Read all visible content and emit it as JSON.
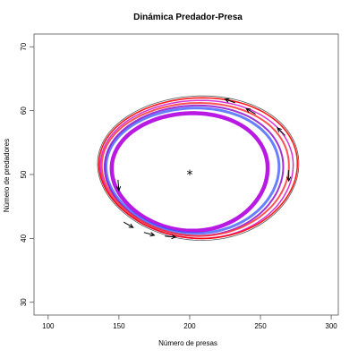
{
  "chart_data": {
    "type": "line",
    "title": "Dinámica Predador-Presa",
    "xlabel": "Número de presas",
    "ylabel": "Número de predadores",
    "xlim": [
      90,
      305
    ],
    "ylim": [
      28,
      72
    ],
    "xticks": [
      100,
      150,
      200,
      250,
      300
    ],
    "yticks": [
      30,
      40,
      50,
      60,
      70
    ],
    "grid": false,
    "equilibrium": {
      "x": 200,
      "y": 50,
      "marker": "*"
    },
    "series": [
      {
        "color": "#b000e0",
        "cx": 200,
        "cy": 50.4,
        "rx": 55,
        "ry": 9.2,
        "stroke": 4.5,
        "opacity": 0.9
      },
      {
        "color": "#3355ff",
        "cx": 202,
        "cy": 50.6,
        "rx": 61,
        "ry": 9.8,
        "stroke": 3,
        "opacity": 0.75
      },
      {
        "color": "#8800cc",
        "cx": 203,
        "cy": 50.6,
        "rx": 63,
        "ry": 10.2,
        "stroke": 2,
        "opacity": 0.8
      },
      {
        "color": "#ff3333",
        "cx": 204,
        "cy": 50.8,
        "rx": 66,
        "ry": 10.4,
        "stroke": 2,
        "opacity": 0.85
      },
      {
        "color": "#cc00cc",
        "cx": 205,
        "cy": 50.8,
        "rx": 68,
        "ry": 10.8,
        "stroke": 1.5,
        "opacity": 0.8
      },
      {
        "color": "#ff0000",
        "cx": 206,
        "cy": 51.0,
        "rx": 70,
        "ry": 11.0,
        "stroke": 1.6,
        "opacity": 0.9
      },
      {
        "color": "#444444",
        "cx": 206,
        "cy": 51.0,
        "rx": 71,
        "ry": 11.3,
        "stroke": 0.8,
        "opacity": 0.9
      }
    ],
    "arrows": [
      {
        "x": 225,
        "y": 61.8,
        "angle": 160
      },
      {
        "x": 240,
        "y": 60.3,
        "angle": 150
      },
      {
        "x": 262,
        "y": 57.3,
        "angle": 135
      },
      {
        "x": 270,
        "y": 49.0,
        "angle": 270
      },
      {
        "x": 150,
        "y": 47.5,
        "angle": 275
      },
      {
        "x": 160,
        "y": 41.7,
        "angle": 330
      },
      {
        "x": 175,
        "y": 40.5,
        "angle": 345
      },
      {
        "x": 190,
        "y": 40.2,
        "angle": 355
      }
    ]
  }
}
